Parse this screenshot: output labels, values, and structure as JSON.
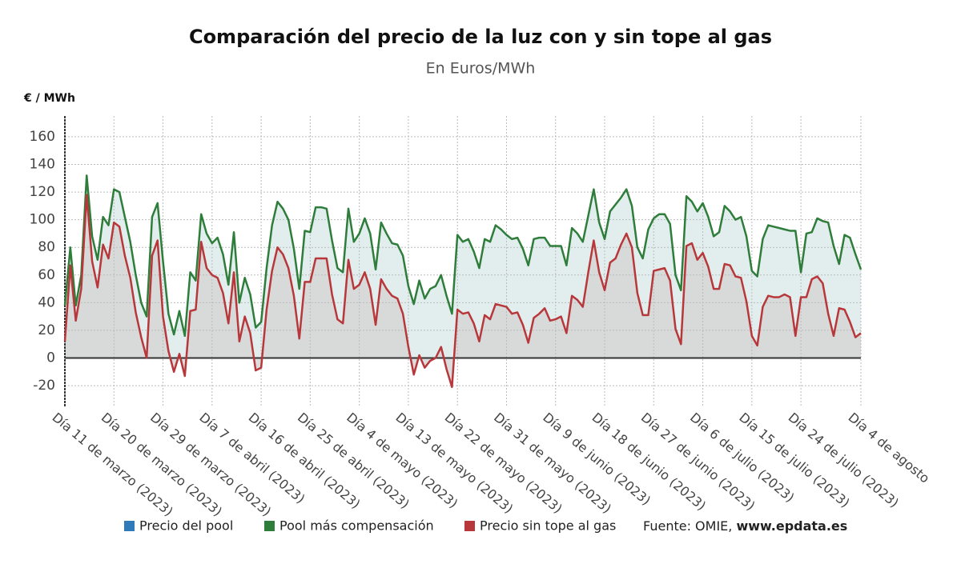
{
  "chart_data": {
    "type": "line",
    "title": "Comparación del precio de la luz con y sin tope al gas",
    "subtitle": "En Euros/MWh",
    "y_label": "€ / MWh",
    "source": {
      "text": "Fuente: OMIE,",
      "site": "www.epdata.es"
    },
    "x": [
      "2023-03-11",
      "2023-03-12",
      "2023-03-13",
      "2023-03-14",
      "2023-03-15",
      "2023-03-16",
      "2023-03-17",
      "2023-03-18",
      "2023-03-19",
      "2023-03-20",
      "2023-03-21",
      "2023-03-22",
      "2023-03-23",
      "2023-03-24",
      "2023-03-25",
      "2023-03-26",
      "2023-03-27",
      "2023-03-28",
      "2023-03-29",
      "2023-03-30",
      "2023-03-31",
      "2023-04-01",
      "2023-04-02",
      "2023-04-03",
      "2023-04-04",
      "2023-04-05",
      "2023-04-06",
      "2023-04-07",
      "2023-04-08",
      "2023-04-09",
      "2023-04-10",
      "2023-04-11",
      "2023-04-12",
      "2023-04-13",
      "2023-04-14",
      "2023-04-15",
      "2023-04-16",
      "2023-04-17",
      "2023-04-18",
      "2023-04-19",
      "2023-04-20",
      "2023-04-21",
      "2023-04-22",
      "2023-04-23",
      "2023-04-24",
      "2023-04-25",
      "2023-04-26",
      "2023-04-27",
      "2023-04-28",
      "2023-04-29",
      "2023-04-30",
      "2023-05-01",
      "2023-05-02",
      "2023-05-03",
      "2023-05-04",
      "2023-05-05",
      "2023-05-06",
      "2023-05-07",
      "2023-05-08",
      "2023-05-09",
      "2023-05-10",
      "2023-05-11",
      "2023-05-12",
      "2023-05-13",
      "2023-05-14",
      "2023-05-15",
      "2023-05-16",
      "2023-05-17",
      "2023-05-18",
      "2023-05-19",
      "2023-05-20",
      "2023-05-21",
      "2023-05-22",
      "2023-05-23",
      "2023-05-24",
      "2023-05-25",
      "2023-05-26",
      "2023-05-27",
      "2023-05-28",
      "2023-05-29",
      "2023-05-30",
      "2023-05-31",
      "2023-06-01",
      "2023-06-02",
      "2023-06-03",
      "2023-06-04",
      "2023-06-05",
      "2023-06-06",
      "2023-06-07",
      "2023-06-08",
      "2023-06-09",
      "2023-06-10",
      "2023-06-11",
      "2023-06-12",
      "2023-06-13",
      "2023-06-14",
      "2023-06-15",
      "2023-06-16",
      "2023-06-17",
      "2023-06-18",
      "2023-06-19",
      "2023-06-20",
      "2023-06-21",
      "2023-06-22",
      "2023-06-23",
      "2023-06-24",
      "2023-06-25",
      "2023-06-26",
      "2023-06-27",
      "2023-06-28",
      "2023-06-29",
      "2023-06-30",
      "2023-07-01",
      "2023-07-02",
      "2023-07-03",
      "2023-07-04",
      "2023-07-05",
      "2023-07-06",
      "2023-07-07",
      "2023-07-08",
      "2023-07-09",
      "2023-07-10",
      "2023-07-11",
      "2023-07-12",
      "2023-07-13",
      "2023-07-14",
      "2023-07-15",
      "2023-07-16",
      "2023-07-17",
      "2023-07-18",
      "2023-07-19",
      "2023-07-20",
      "2023-07-21",
      "2023-07-22",
      "2023-07-23",
      "2023-07-24",
      "2023-07-25",
      "2023-07-26",
      "2023-07-27",
      "2023-07-28",
      "2023-07-29",
      "2023-07-30",
      "2023-07-31",
      "2023-08-01",
      "2023-08-02",
      "2023-08-03",
      "2023-08-04"
    ],
    "series": [
      {
        "name": "Precio del pool",
        "color": "#2f7ab9",
        "visible": false
      },
      {
        "name": "Pool más compensación",
        "color": "#2e7d3a",
        "fill": "#e2eeee",
        "values": [
          38,
          80,
          38,
          60,
          132,
          88,
          71,
          102,
          96,
          122,
          120,
          102,
          84,
          60,
          40,
          30,
          102,
          112,
          70,
          32,
          17,
          34,
          16,
          62,
          56,
          104,
          90,
          83,
          87,
          75,
          53,
          91,
          40,
          58,
          46,
          22,
          26,
          65,
          96,
          113,
          108,
          100,
          79,
          50,
          92,
          91,
          109,
          109,
          108,
          85,
          65,
          62,
          108,
          84,
          90,
          101,
          90,
          64,
          98,
          90,
          83,
          82,
          74,
          52,
          39,
          56,
          43,
          50,
          52,
          60,
          45,
          32,
          89,
          84,
          86,
          77,
          65,
          86,
          84,
          96,
          93,
          89,
          86,
          87,
          79,
          67,
          86,
          87,
          87,
          81,
          81,
          81,
          67,
          94,
          90,
          84,
          103,
          122,
          98,
          86,
          106,
          111,
          116,
          122,
          110,
          80,
          72,
          93,
          101,
          104,
          104,
          97,
          60,
          49,
          117,
          113,
          106,
          112,
          102,
          88,
          91,
          110,
          106,
          100,
          102,
          88,
          63,
          59,
          86,
          96,
          95,
          94,
          93,
          92,
          92,
          62,
          90,
          91,
          101,
          99,
          98,
          81,
          68,
          89,
          87,
          75,
          64
        ]
      },
      {
        "name": "Precio sin tope al gas",
        "color": "#b8373a",
        "fill": "#d6d6d6",
        "values": [
          12,
          67,
          27,
          50,
          118,
          70,
          51,
          82,
          72,
          98,
          95,
          74,
          58,
          33,
          15,
          0,
          74,
          85,
          30,
          5,
          -10,
          3,
          -13,
          34,
          35,
          84,
          65,
          60,
          58,
          47,
          25,
          62,
          12,
          30,
          18,
          -9,
          -7,
          35,
          63,
          80,
          75,
          65,
          45,
          14,
          55,
          55,
          72,
          72,
          72,
          46,
          28,
          25,
          71,
          50,
          53,
          62,
          50,
          24,
          57,
          50,
          45,
          43,
          32,
          8,
          -12,
          2,
          -7,
          -2,
          0,
          8,
          -8,
          -21,
          35,
          32,
          33,
          25,
          12,
          31,
          28,
          39,
          38,
          37,
          32,
          33,
          24,
          11,
          29,
          32,
          36,
          27,
          28,
          30,
          18,
          45,
          42,
          37,
          62,
          85,
          62,
          49,
          69,
          72,
          82,
          90,
          80,
          47,
          31,
          31,
          63,
          64,
          65,
          56,
          21,
          10,
          81,
          83,
          71,
          76,
          66,
          50,
          50,
          68,
          67,
          59,
          58,
          41,
          16,
          9,
          37,
          45,
          44,
          44,
          46,
          44,
          16,
          44,
          44,
          57,
          59,
          54,
          32,
          16,
          36,
          35,
          26,
          15,
          18
        ]
      }
    ],
    "xlim": [
      "2023-03-11",
      "2023-08-04"
    ],
    "xticks": [
      {
        "value": "2023-03-11",
        "label": "Día 11 de marzo (2023)"
      },
      {
        "value": "2023-03-20",
        "label": "Día 20 de marzo (2023)"
      },
      {
        "value": "2023-03-29",
        "label": "Día 29 de marzo (2023)"
      },
      {
        "value": "2023-04-07",
        "label": "Día 7 de abril (2023)"
      },
      {
        "value": "2023-04-16",
        "label": "Día 16 de abril (2023)"
      },
      {
        "value": "2023-04-25",
        "label": "Día 25 de abril (2023)"
      },
      {
        "value": "2023-05-04",
        "label": "Día 4 de mayo (2023)"
      },
      {
        "value": "2023-05-13",
        "label": "Día 13 de mayo (2023)"
      },
      {
        "value": "2023-05-22",
        "label": "Día 22 de mayo (2023)"
      },
      {
        "value": "2023-05-31",
        "label": "Día 31 de mayo (2023)"
      },
      {
        "value": "2023-06-09",
        "label": "Día 9 de junio (2023)"
      },
      {
        "value": "2023-06-18",
        "label": "Día 18 de junio (2023)"
      },
      {
        "value": "2023-06-27",
        "label": "Día 27 de junio (2023)"
      },
      {
        "value": "2023-07-06",
        "label": "Día 6 de julio (2023)"
      },
      {
        "value": "2023-07-15",
        "label": "Día 15 de julio (2023)"
      },
      {
        "value": "2023-07-24",
        "label": "Día 24 de julio (2023)"
      },
      {
        "value": "2023-08-04",
        "label": "Día 4 de agosto"
      }
    ],
    "ylim": [
      -35,
      175
    ],
    "yticks": [
      -20,
      0,
      20,
      40,
      60,
      80,
      100,
      120,
      140,
      160
    ],
    "grid": true
  }
}
